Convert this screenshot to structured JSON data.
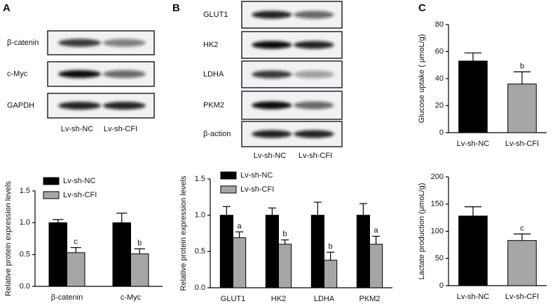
{
  "panel_labels": [
    "A",
    "B",
    "C"
  ],
  "blots": [
    {
      "rows": [
        "β-catenin",
        "c-Myc",
        "GAPDH"
      ],
      "lanes": [
        "Lv-sh-NC",
        "Lv-sh-CFI"
      ]
    },
    {
      "rows": [
        "GLUT1",
        "HK2",
        "LDHA",
        "PKM2",
        "β-action"
      ],
      "lanes": [
        "Lv-sh-NC",
        "Lv-sh-CFI"
      ]
    }
  ],
  "chart_data": [
    {
      "type": "bar",
      "y_label": "Relative protein expression levels",
      "categories": [
        "β-catenin",
        "c-Myc"
      ],
      "series": [
        {
          "name": "Lv-sh-NC",
          "color": "#000000",
          "values": [
            1.0,
            1.0
          ],
          "errors": [
            0.05,
            0.15
          ]
        },
        {
          "name": "Lv-sh-CFI",
          "color": "#a6a6a6",
          "values": [
            0.53,
            0.51
          ],
          "errors": [
            0.08,
            0.08
          ],
          "annotations": [
            "c",
            "b"
          ]
        }
      ],
      "ylim": [
        0,
        1.5
      ],
      "yticks": [
        {
          "value": 0,
          "label": "0.0"
        },
        0.5,
        {
          "value": 1,
          "label": "1.0"
        },
        1.5
      ]
    },
    {
      "type": "bar",
      "y_label": "Relative protein expression levels",
      "categories": [
        "GLUT1",
        "HK2",
        "LDHA",
        "PKM2"
      ],
      "series": [
        {
          "name": "Lv-sh-NC",
          "color": "#000000",
          "values": [
            1.0,
            1.0,
            1.0,
            1.0
          ],
          "errors": [
            0.12,
            0.1,
            0.18,
            0.16
          ]
        },
        {
          "name": "Lv-sh-CFI",
          "color": "#a6a6a6",
          "values": [
            0.69,
            0.6,
            0.38,
            0.6
          ],
          "errors": [
            0.08,
            0.06,
            0.11,
            0.11
          ],
          "annotations": [
            "a",
            "b",
            "b",
            "a"
          ]
        }
      ],
      "ylim": [
        0,
        1.5
      ],
      "yticks": [
        {
          "value": 0,
          "label": "0.0"
        },
        0.5,
        {
          "value": 1,
          "label": "1.0"
        },
        1.5
      ]
    },
    {
      "type": "bar",
      "y_label": "Glucose uptake ( μmoL/g)",
      "categories": [
        "Lv-sh-NC",
        "Lv-sh-CFI"
      ],
      "values": [
        53,
        36
      ],
      "errors": [
        6,
        9
      ],
      "colors": [
        "#000000",
        "#a6a6a6"
      ],
      "annotations": [
        null,
        "b"
      ],
      "ylim": [
        0,
        80
      ],
      "yticks": [
        0,
        20,
        40,
        60,
        80
      ]
    },
    {
      "type": "bar",
      "y_label": "Lactate production (μmoL/g)",
      "categories": [
        "Lv-sh-NC",
        "Lv-sh-CFI"
      ],
      "values": [
        128,
        83
      ],
      "errors": [
        17,
        12
      ],
      "colors": [
        "#000000",
        "#a6a6a6"
      ],
      "annotations": [
        null,
        "c"
      ],
      "ylim": [
        0,
        200
      ],
      "yticks": [
        0,
        50,
        100,
        150,
        200
      ]
    }
  ]
}
